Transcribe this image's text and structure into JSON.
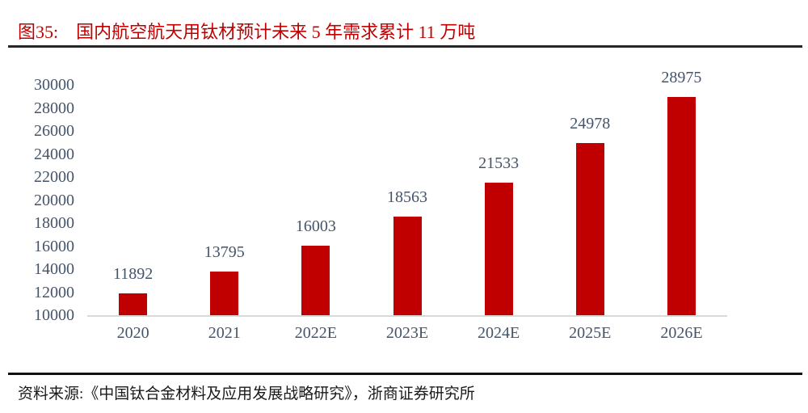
{
  "title": {
    "tag": "图35:",
    "text": "国内航空航天用钛材预计未来 5 年需求累计 11 万吨"
  },
  "source": "资料来源:《中国钛合金材料及应用发展战略研究》，浙商证券研究所",
  "colors": {
    "bar": "#c00000",
    "title": "#c00000",
    "axis_label": "#44546a",
    "baseline": "#d9d9d9",
    "header_rule": "#262626",
    "footer_rule": "#111111"
  },
  "chart_data": {
    "type": "bar",
    "title": "国内航空航天用钛材预计未来 5 年需求累计 11 万吨",
    "categories": [
      "2020",
      "2021",
      "2022E",
      "2023E",
      "2024E",
      "2025E",
      "2026E"
    ],
    "values": [
      11892,
      13795,
      16003,
      18563,
      21533,
      24978,
      28975
    ],
    "xlabel": "",
    "ylabel": "",
    "ylim": [
      10000,
      30000
    ],
    "ytick_step": 2000,
    "yticks": [
      10000,
      12000,
      14000,
      16000,
      18000,
      20000,
      22000,
      24000,
      26000,
      28000,
      30000
    ],
    "grid": false,
    "legend": false,
    "data_labels": true,
    "bar_color": "#c00000"
  }
}
